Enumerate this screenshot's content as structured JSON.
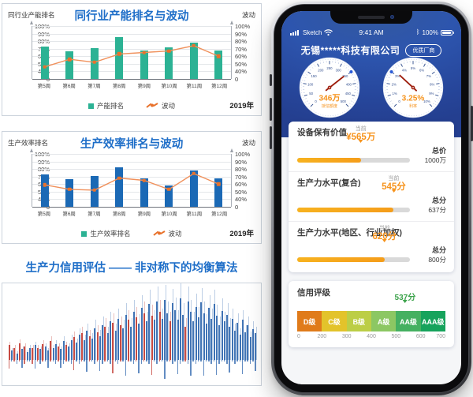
{
  "colors": {
    "title_blue": "#1e6ec8",
    "bar_teal": "#2cb294",
    "bar_blue": "#1b69b5",
    "line_orange": "#f0915c",
    "marker_orange": "#e8722c",
    "accent_orange": "#f6931c",
    "value_green": "#3ca34b",
    "phone_blue": "#2d55ae",
    "spike_blue": "#2e66ad",
    "spike_red": "#c23a31",
    "needle_red": "#9e1f0e",
    "gauge_marker_blue": "#2a5bd7"
  },
  "chart_data": [
    {
      "type": "bar",
      "title": "同行业产能排名与波动",
      "left_axis_label": "同行业产能排名",
      "right_axis_label": "波动",
      "year": "2019年",
      "categories": [
        "第5周",
        "第6周",
        "第7周",
        "第8周",
        "第9周",
        "第10周",
        "第11周",
        "第12周"
      ],
      "y_ticks": [
        "100%",
        "90%",
        "80%",
        "70%",
        "60%",
        "50%",
        "40%",
        "0"
      ],
      "series": [
        {
          "name": "产能排名",
          "type": "bar",
          "color": "#2cb294",
          "values": [
            73,
            67,
            71,
            85,
            68,
            72,
            78,
            68
          ]
        },
        {
          "name": "波动",
          "type": "line",
          "color": "#f0915c",
          "values": [
            46,
            56,
            52,
            63,
            65,
            67,
            74,
            60
          ]
        }
      ],
      "legend_position": "bottom"
    },
    {
      "type": "bar",
      "title": "生产效率排名与波动",
      "left_axis_label": "生产效率排名",
      "right_axis_label": "波动",
      "year": "2019年",
      "categories": [
        "第5周",
        "第6周",
        "第7周",
        "第8周",
        "第9周",
        "第10周",
        "第11周",
        "第12周"
      ],
      "y_ticks": [
        "100%",
        "90%",
        "80%",
        "70%",
        "60%",
        "50%",
        "40%",
        "0"
      ],
      "series": [
        {
          "name": "生产效率排名",
          "type": "bar",
          "color": "#1b69b5",
          "values": [
            73,
            67,
            71,
            82,
            68,
            58,
            78,
            68
          ]
        },
        {
          "name": "波动",
          "type": "line",
          "color": "#f0915c",
          "values": [
            59,
            53,
            52,
            68,
            65,
            53,
            74,
            60
          ]
        }
      ],
      "legend_position": "bottom"
    },
    {
      "type": "spikes",
      "title": "生产力信用评估 —— 非对称下的均衡算法",
      "note": "signed heights in % of plot, positive=blue, negative=red",
      "values": [
        -22,
        14,
        -18,
        10,
        -25,
        16,
        -20,
        12,
        18,
        -18,
        22,
        -18,
        16,
        -24,
        20,
        14,
        -28,
        18,
        24,
        -20,
        16,
        28,
        -22,
        20,
        30,
        -34,
        26,
        38,
        -40,
        30,
        44,
        -36,
        32,
        48,
        -42,
        36,
        52,
        -50,
        40,
        58,
        -56,
        44,
        62,
        -52,
        48,
        68,
        -60,
        50,
        72,
        -64,
        55,
        78,
        -70,
        58,
        84,
        -66,
        60,
        88,
        -72,
        62,
        90,
        70,
        -58,
        85,
        75,
        60,
        92,
        68,
        -50,
        88,
        72,
        58,
        80,
        64,
        86,
        70,
        55,
        78,
        62,
        84,
        66,
        52,
        74,
        58,
        68,
        50,
        62,
        44,
        56,
        38,
        60,
        42,
        52,
        34,
        46,
        40
      ]
    }
  ],
  "phone": {
    "status": {
      "carrier": "Sketch",
      "time": "9:41 AM",
      "battery": "100%"
    },
    "header": {
      "company": "无锡*****科技有限公司",
      "badge": "优质厂商"
    },
    "gauges": [
      {
        "value_text": "346万",
        "label": "授信额度",
        "value": 346,
        "max": 500,
        "marker": 350,
        "tick_labels": [
          "0",
          "50",
          "100",
          "150",
          "200",
          "250",
          "300",
          "350",
          "400",
          "450",
          "500"
        ]
      },
      {
        "value_text": "3.25%",
        "label": "利率",
        "value": 3.25,
        "max": 10,
        "marker": 3,
        "tick_labels": [
          "0",
          "1%",
          "2%",
          "3%",
          "4%",
          "5%",
          "6%",
          "7%",
          "8%",
          "9%",
          "10%"
        ]
      }
    ],
    "sections": [
      {
        "title": "设备保有价值",
        "current_label": "当前",
        "value": "¥565万",
        "pct": 56.5,
        "total_label": "总价",
        "total": "1000万"
      },
      {
        "title": "生产力水平(复合)",
        "current_label": "当前",
        "value": "545分",
        "pct": 85.6,
        "total_label": "总分",
        "total": "637分"
      },
      {
        "title": "生产力水平(地区、行业加权)",
        "current_label": "当前",
        "value": "620分",
        "pct": 77.5,
        "total_label": "总分",
        "total": "800分"
      }
    ],
    "rating": {
      "title": "信用评级",
      "value": "537分",
      "marker_pct": 72.8,
      "grades": [
        {
          "label": "D级",
          "color": "#e07b1a"
        },
        {
          "label": "C级",
          "color": "#e3c32b"
        },
        {
          "label": "B级",
          "color": "#bcce46"
        },
        {
          "label": "A级",
          "color": "#8cc763"
        },
        {
          "label": "AA级",
          "color": "#45b061"
        },
        {
          "label": "AAA级",
          "color": "#16a35c"
        }
      ],
      "ticks": [
        "0",
        "200",
        "300",
        "400",
        "500",
        "600",
        "700"
      ]
    }
  }
}
